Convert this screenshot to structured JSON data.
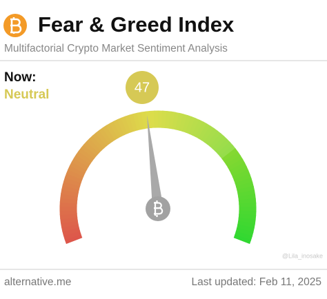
{
  "chart_data": {
    "type": "gauge",
    "title": "Fear & Greed Index",
    "subtitle": "Multifactorial Crypto Market Sentiment Analysis",
    "label": "Now:",
    "classification": "Neutral",
    "value": 47,
    "ylim": [
      0,
      100
    ],
    "color": "#d6c955",
    "source": "alternative.me",
    "updated": "Last updated: Feb 11, 2025",
    "watermark": "@Lila_inosake"
  }
}
